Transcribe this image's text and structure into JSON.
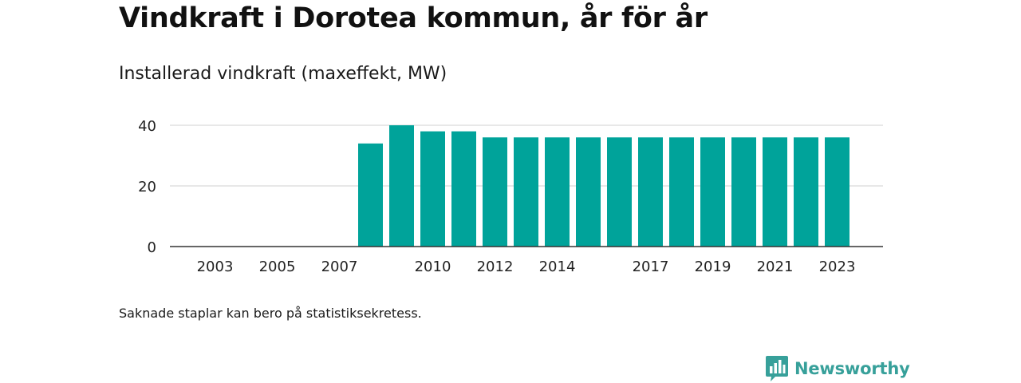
{
  "header": {
    "title": "Vindkraft i Dorotea kommun, år för år",
    "subtitle": "Installerad vindkraft (maxeffekt, MW)"
  },
  "footnote": "Saknade staplar kan bero på statistiksekretess.",
  "brand": {
    "name": "Newsworthy",
    "logo_icon": "bar-chart-speech-bubble-icon",
    "color": "#37a09a"
  },
  "colors": {
    "bar": "#00a39a",
    "grid": "#d9d9d9",
    "axis": "#333333",
    "text": "#222222"
  },
  "chart_data": {
    "type": "bar",
    "title": "Installerad vindkraft (maxeffekt, MW)",
    "xlabel": "",
    "ylabel": "",
    "ylim": [
      0,
      40
    ],
    "grid": true,
    "yticks": [
      0,
      20,
      40
    ],
    "xticks": [
      2003,
      2005,
      2007,
      2010,
      2012,
      2014,
      2017,
      2019,
      2021,
      2023
    ],
    "x": [
      2002,
      2003,
      2004,
      2005,
      2006,
      2007,
      2008,
      2009,
      2010,
      2011,
      2012,
      2013,
      2014,
      2015,
      2016,
      2017,
      2018,
      2019,
      2020,
      2021,
      2022,
      2023
    ],
    "values": [
      0,
      0,
      0,
      0,
      0,
      0,
      34,
      40,
      38,
      38,
      36,
      36,
      36,
      36,
      36,
      36,
      36,
      36,
      36,
      36,
      36,
      36
    ]
  }
}
